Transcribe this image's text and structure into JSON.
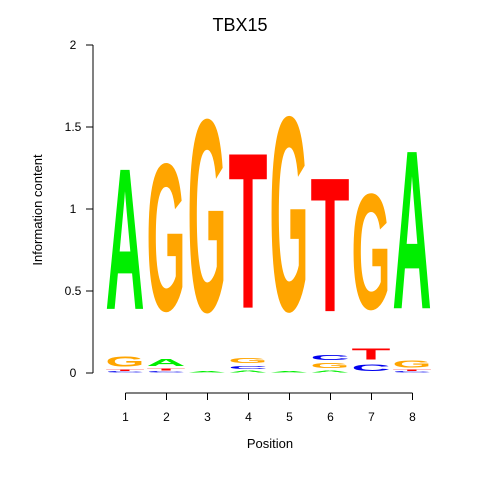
{
  "chart_data": {
    "type": "sequence-logo",
    "title": "TBX15",
    "xlabel": "Position",
    "ylabel": "Information content",
    "ylim": [
      0,
      2
    ],
    "y_ticks": [
      {
        "value": 0,
        "label": "0"
      },
      {
        "value": 0.5,
        "label": "0.5"
      },
      {
        "value": 1,
        "label": "1"
      },
      {
        "value": 1.5,
        "label": "1.5"
      },
      {
        "value": 2,
        "label": "2"
      }
    ],
    "x_ticks": [
      "1",
      "2",
      "3",
      "4",
      "5",
      "6",
      "7",
      "8"
    ],
    "colors": {
      "A": "#00ee00",
      "C": "#0000ee",
      "G": "#ffa500",
      "T": "#ff0000"
    },
    "positions": [
      {
        "position": "1",
        "letters": [
          {
            "base": "C",
            "height": 0.01
          },
          {
            "base": "T",
            "height": 0.01
          },
          {
            "base": "G",
            "height": 0.1
          },
          {
            "base": "A",
            "height": 1.38
          }
        ]
      },
      {
        "position": "2",
        "letters": [
          {
            "base": "C",
            "height": 0.01
          },
          {
            "base": "T",
            "height": 0.02
          },
          {
            "base": "A",
            "height": 0.07
          },
          {
            "base": "G",
            "height": 1.44
          }
        ]
      },
      {
        "position": "3",
        "letters": [
          {
            "base": "A",
            "height": 0.01
          },
          {
            "base": "G",
            "height": 1.88
          }
        ]
      },
      {
        "position": "4",
        "letters": [
          {
            "base": "A",
            "height": 0.02
          },
          {
            "base": "C",
            "height": 0.03
          },
          {
            "base": "G",
            "height": 0.05
          },
          {
            "base": "T",
            "height": 1.52
          }
        ]
      },
      {
        "position": "5",
        "letters": [
          {
            "base": "A",
            "height": 0.01
          },
          {
            "base": "G",
            "height": 1.9
          }
        ]
      },
      {
        "position": "6",
        "letters": [
          {
            "base": "A",
            "height": 0.02
          },
          {
            "base": "G",
            "height": 0.05
          },
          {
            "base": "C",
            "height": 0.05
          },
          {
            "base": "T",
            "height": 1.31
          }
        ]
      },
      {
        "position": "7",
        "letters": [
          {
            "base": "C",
            "height": 0.06
          },
          {
            "base": "T",
            "height": 0.11
          },
          {
            "base": "G",
            "height": 1.13
          }
        ]
      },
      {
        "position": "8",
        "letters": [
          {
            "base": "C",
            "height": 0.01
          },
          {
            "base": "T",
            "height": 0.01
          },
          {
            "base": "G",
            "height": 0.07
          },
          {
            "base": "A",
            "height": 1.55
          }
        ]
      }
    ]
  }
}
